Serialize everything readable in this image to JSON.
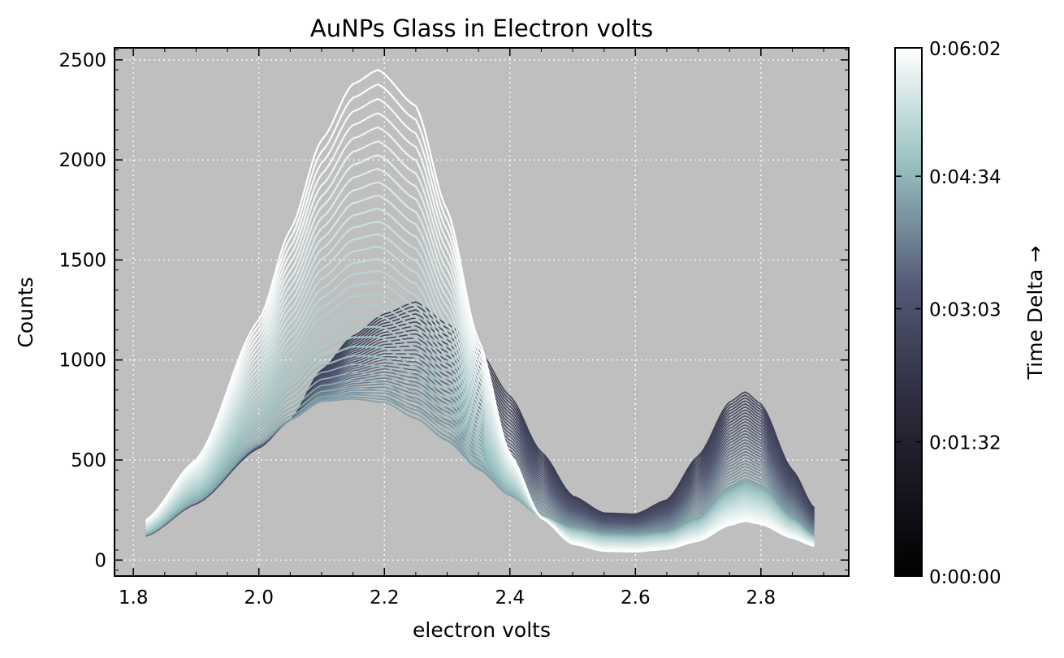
{
  "chart_data": {
    "type": "line",
    "title": "AuNPs Glass in Electron volts",
    "xlabel": "electron volts",
    "ylabel": "Counts",
    "xlim": [
      1.77,
      2.94
    ],
    "ylim": [
      -80,
      2560
    ],
    "xticks": [
      1.8,
      2.0,
      2.2,
      2.4,
      2.6,
      2.8
    ],
    "xtick_labels": [
      "1.8",
      "2.0",
      "2.2",
      "2.4",
      "2.6",
      "2.8"
    ],
    "yticks": [
      0,
      500,
      1000,
      1500,
      2000,
      2500
    ],
    "ytick_labels": [
      "0",
      "500",
      "1000",
      "1500",
      "2000",
      "2500"
    ],
    "grid": true,
    "background": "#bfbfbf",
    "colormap": "bone",
    "series_count": 60,
    "series_description": "Spectra recorded over time; x from 1.82 to 2.885 eV",
    "early_spectrum": {
      "x": [
        1.82,
        1.9,
        2.0,
        2.05,
        2.1,
        2.15,
        2.2,
        2.25,
        2.3,
        2.35,
        2.4,
        2.45,
        2.5,
        2.55,
        2.6,
        2.65,
        2.7,
        2.75,
        2.775,
        2.8,
        2.85,
        2.885
      ],
      "y": [
        120,
        280,
        560,
        700,
        950,
        1120,
        1230,
        1290,
        1180,
        1050,
        820,
        540,
        320,
        235,
        230,
        300,
        520,
        790,
        840,
        780,
        450,
        260
      ]
    },
    "mid_spectrum": {
      "x": [
        1.82,
        1.9,
        2.0,
        2.05,
        2.1,
        2.15,
        2.2,
        2.25,
        2.3,
        2.35,
        2.4,
        2.45,
        2.5,
        2.55,
        2.6,
        2.65,
        2.7,
        2.75,
        2.775,
        2.8,
        2.85,
        2.885
      ],
      "y": [
        125,
        290,
        580,
        700,
        790,
        800,
        780,
        700,
        590,
        450,
        320,
        220,
        160,
        130,
        125,
        140,
        210,
        360,
        400,
        370,
        210,
        120
      ]
    },
    "late_spectrum": {
      "x": [
        1.82,
        1.9,
        2.0,
        2.05,
        2.1,
        2.15,
        2.19,
        2.25,
        2.3,
        2.35,
        2.4,
        2.45,
        2.5,
        2.55,
        2.6,
        2.65,
        2.7,
        2.75,
        2.775,
        2.8,
        2.85,
        2.885
      ],
      "y": [
        200,
        500,
        1200,
        1650,
        2100,
        2380,
        2450,
        2270,
        1750,
        1100,
        530,
        210,
        80,
        45,
        42,
        55,
        95,
        175,
        195,
        180,
        110,
        70
      ]
    },
    "colorbar": {
      "label": "Time Delta →",
      "ticks": [
        "0:00:00",
        "0:01:32",
        "0:03:03",
        "0:04:34",
        "0:06:02"
      ],
      "tick_fractions": [
        0,
        0.254,
        0.506,
        0.757,
        1
      ],
      "stops": [
        "#000000",
        "#2c2c3d",
        "#545a75",
        "#98c0c0",
        "#ffffff"
      ]
    }
  }
}
